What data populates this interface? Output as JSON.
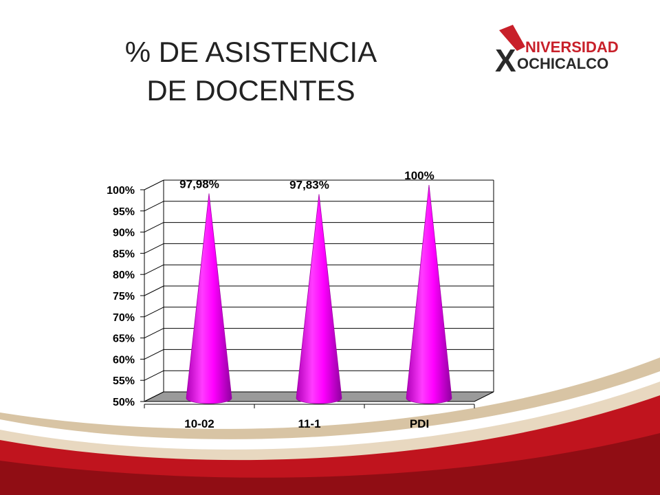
{
  "slide": {
    "title": "% DE ASISTENCIA DE DOCENTES"
  },
  "logo": {
    "text_top": "NIVERSIDAD",
    "text_bottom": "OCHICALCO",
    "letter": "X",
    "colors": {
      "red": "#c8202a",
      "dark": "#2a2a2a"
    }
  },
  "colors": {
    "cone": "#ff00ff",
    "cone_dark": "#a000a8",
    "floor": "#9a9a9a",
    "grid": "#000000",
    "swoosh_red": "#c0141e",
    "swoosh_gold": "#b8945a"
  },
  "chart_data": {
    "type": "bar",
    "bar_shape": "cone",
    "categories": [
      "10-02",
      "11-1",
      "PDI"
    ],
    "values": [
      97.98,
      97.83,
      100
    ],
    "data_labels": [
      "97,98%",
      "97,83%",
      "100%"
    ],
    "ylim": [
      50,
      100
    ],
    "yticks": [
      50,
      55,
      60,
      65,
      70,
      75,
      80,
      85,
      90,
      95,
      100
    ],
    "ytick_labels": [
      "50%",
      "55%",
      "60%",
      "65%",
      "70%",
      "75%",
      "80%",
      "85%",
      "90%",
      "95%",
      "100%"
    ],
    "grid": true,
    "legend": "none"
  }
}
